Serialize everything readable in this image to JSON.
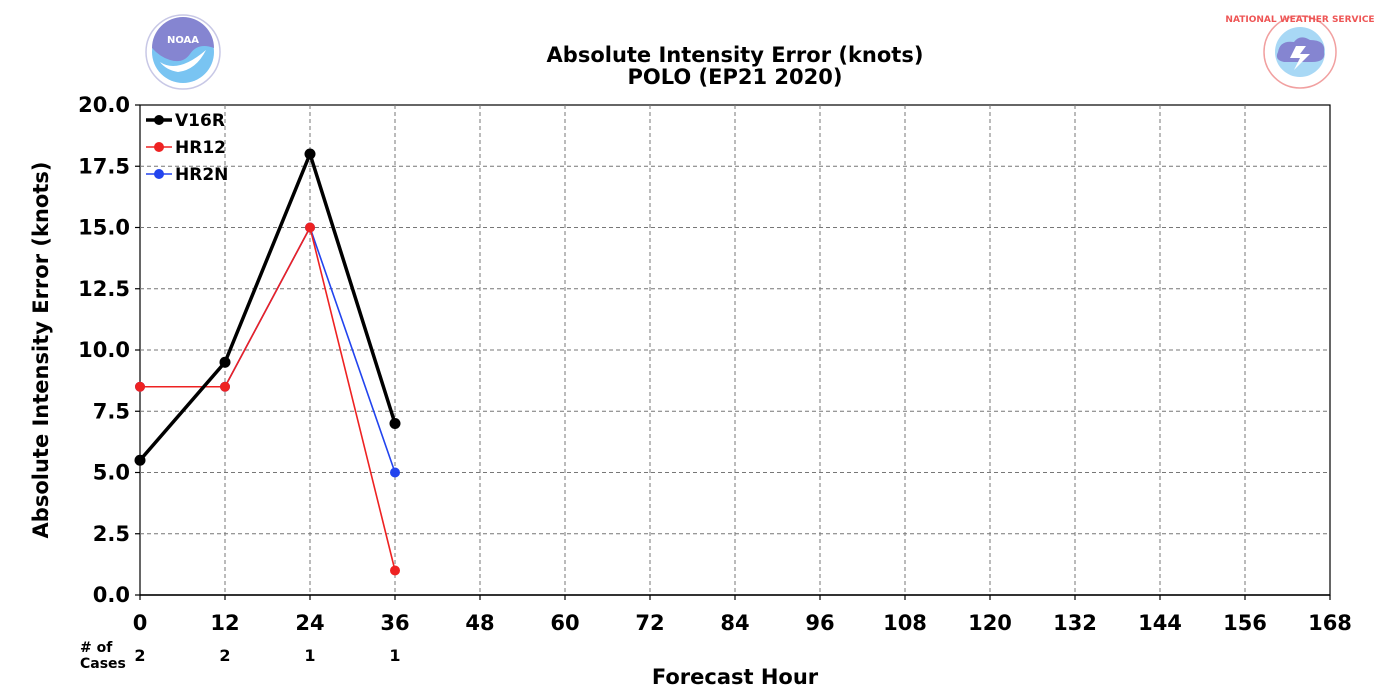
{
  "chart_data": {
    "type": "line",
    "title_line1": "Absolute Intensity Error (knots)",
    "title_line2": "POLO (EP21 2020)",
    "xlabel": "Forecast Hour",
    "ylabel": "Absolute Intensity Error (knots)",
    "xlim": [
      0,
      168
    ],
    "ylim": [
      0,
      20
    ],
    "x_ticks": [
      "0",
      "12",
      "24",
      "36",
      "48",
      "60",
      "72",
      "84",
      "96",
      "108",
      "120",
      "132",
      "144",
      "156",
      "168"
    ],
    "y_ticks": [
      "0.0",
      "2.5",
      "5.0",
      "7.5",
      "10.0",
      "12.5",
      "15.0",
      "17.5",
      "20.0"
    ],
    "grid": true,
    "legend_position": "top-left",
    "series": [
      {
        "name": "V16R",
        "color": "#000000",
        "x": [
          0,
          12,
          24,
          36
        ],
        "values": [
          5.5,
          9.5,
          18.0,
          7.0
        ]
      },
      {
        "name": "HR12",
        "color": "#ee2222",
        "x": [
          0,
          12,
          24,
          36
        ],
        "values": [
          8.5,
          8.5,
          15.0,
          1.0
        ]
      },
      {
        "name": "HR2N",
        "color": "#2244ee",
        "x": [
          0,
          12,
          24,
          36
        ],
        "values": [
          8.5,
          8.5,
          15.0,
          5.0
        ]
      }
    ],
    "cases_label_line1": "# of",
    "cases_label_line2": "Cases",
    "cases": [
      {
        "x": 0,
        "label": "2"
      },
      {
        "x": 12,
        "label": "2"
      },
      {
        "x": 24,
        "label": "1"
      },
      {
        "x": 36,
        "label": "1"
      }
    ]
  },
  "logos": {
    "left": {
      "icon": "noaa-logo-icon",
      "text": "NOAA"
    },
    "right": {
      "icon": "nws-logo-icon",
      "text": "NATIONAL WEATHER SERVICE"
    }
  }
}
